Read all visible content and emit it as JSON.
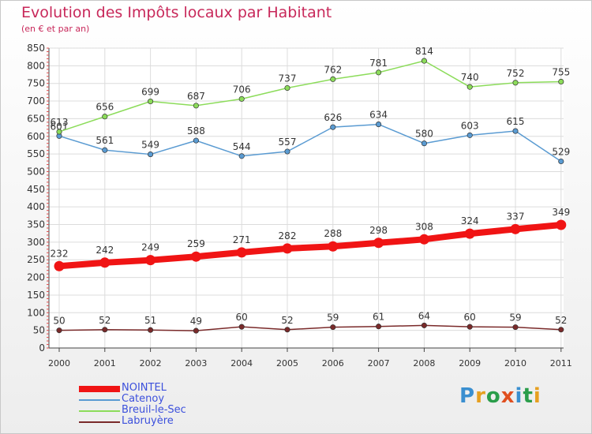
{
  "title": "Evolution des Impôts locaux par Habitant",
  "subtitle": "(en € et par an)",
  "logo": {
    "text": "Proxiti",
    "letter_colors": [
      "#3a8fd0",
      "#e6a020",
      "#2a9d4a",
      "#e05020",
      "#3a8fd0",
      "#2a9d4a",
      "#e6a020"
    ]
  },
  "chart_data": {
    "type": "line",
    "x": [
      "2000",
      "2001",
      "2002",
      "2003",
      "2004",
      "2005",
      "2006",
      "2007",
      "2008",
      "2009",
      "2010",
      "2011"
    ],
    "ylim": [
      0,
      850
    ],
    "yticks": [
      0,
      50,
      100,
      150,
      200,
      250,
      300,
      350,
      400,
      450,
      500,
      550,
      600,
      650,
      700,
      750,
      800,
      850
    ],
    "grid": true,
    "legend_position": "bottom-left",
    "series": [
      {
        "name": "NOINTEL",
        "color": "#f01414",
        "emphasis": true,
        "values": [
          232,
          242,
          249,
          259,
          271,
          282,
          288,
          298,
          308,
          324,
          337,
          349
        ]
      },
      {
        "name": "Catenoy",
        "color": "#5a9bd2",
        "emphasis": false,
        "values": [
          601,
          561,
          549,
          588,
          544,
          557,
          626,
          634,
          580,
          603,
          615,
          529
        ]
      },
      {
        "name": "Breuil-le-Sec",
        "color": "#8cdc5a",
        "emphasis": false,
        "values": [
          613,
          656,
          699,
          687,
          706,
          737,
          762,
          781,
          814,
          740,
          752,
          755
        ]
      },
      {
        "name": "Labruyère",
        "color": "#7a2a2a",
        "emphasis": false,
        "values": [
          50,
          52,
          51,
          49,
          60,
          52,
          59,
          61,
          64,
          60,
          59,
          52
        ]
      }
    ]
  }
}
